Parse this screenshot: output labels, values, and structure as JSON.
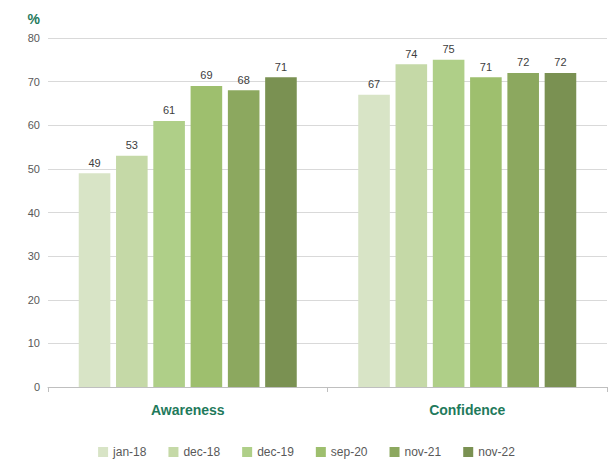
{
  "chart_data": {
    "type": "bar",
    "ylabel": "%",
    "categories": [
      "Awareness",
      "Confidence"
    ],
    "series": [
      {
        "name": "jan-18",
        "color": "#d8e4c6",
        "values": [
          49,
          67
        ]
      },
      {
        "name": "dec-18",
        "color": "#c5d9a7",
        "values": [
          53,
          74
        ]
      },
      {
        "name": "dec-19",
        "color": "#afcf88",
        "values": [
          61,
          75
        ]
      },
      {
        "name": "sep-20",
        "color": "#9ebf6e",
        "values": [
          69,
          71
        ]
      },
      {
        "name": "nov-21",
        "color": "#8ca85f",
        "values": [
          68,
          72
        ]
      },
      {
        "name": "nov-22",
        "color": "#7a9152",
        "values": [
          71,
          72
        ]
      }
    ],
    "ylim": [
      0,
      80
    ],
    "yticks": [
      0,
      10,
      20,
      30,
      40,
      50,
      60,
      70,
      80
    ],
    "grid": true,
    "legend": "bottom",
    "data_labels": true
  }
}
